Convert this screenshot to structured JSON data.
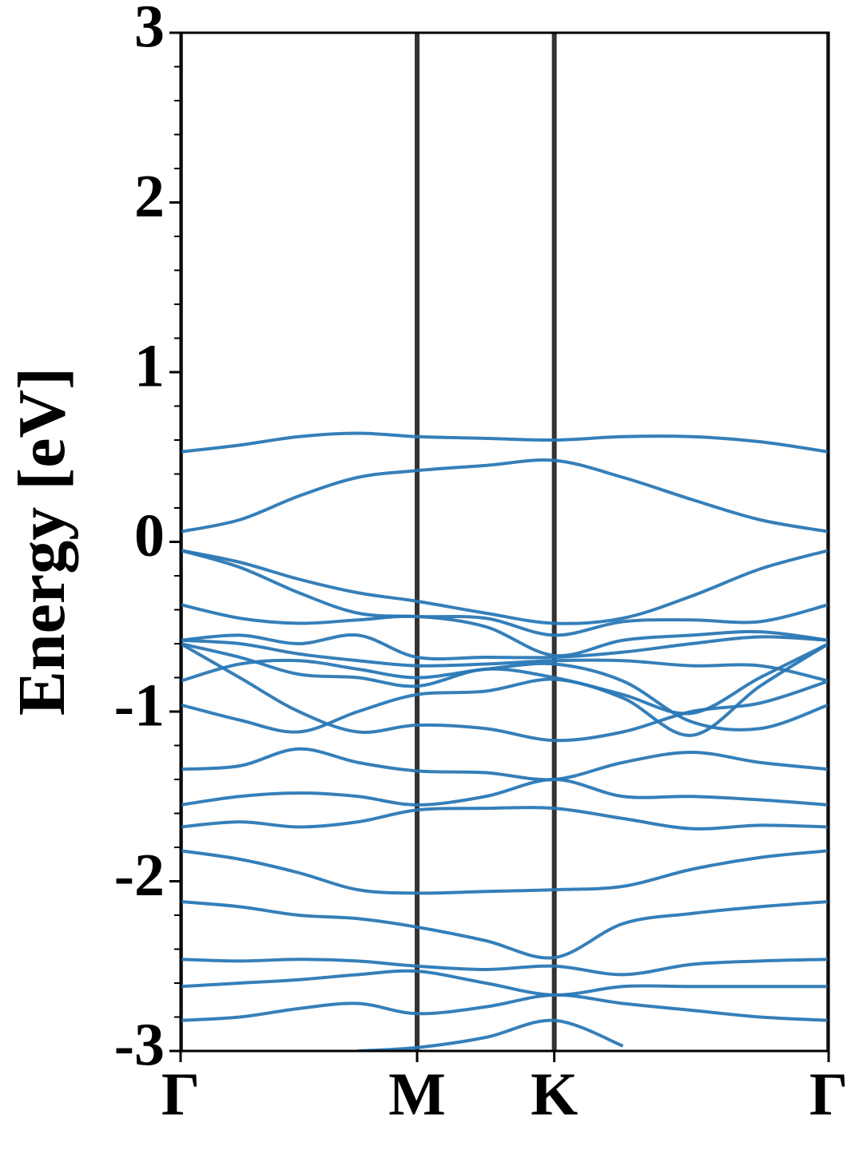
{
  "chart_data": {
    "type": "line",
    "ylabel": "Energy [eV]",
    "x": [
      0,
      0.25,
      0.5,
      0.75,
      1,
      1.29,
      1.58,
      1.87,
      2.16,
      2.45,
      2.74
    ],
    "xlim": [
      0,
      2.74
    ],
    "xticks": [
      {
        "value": 0,
        "label": "Γ"
      },
      {
        "value": 1,
        "label": "M"
      },
      {
        "value": 1.58,
        "label": "K"
      },
      {
        "value": 2.74,
        "label": "Γ"
      }
    ],
    "xgrid": true,
    "ylim": [
      -3,
      3
    ],
    "yticks": [
      -3,
      -2,
      -1,
      0,
      1,
      2,
      3
    ],
    "yminorticks": [
      -2.8,
      -2.6,
      -2.4,
      -2.2,
      -1.8,
      -1.6,
      -1.4,
      -1.2,
      -0.8,
      -0.6,
      -0.4,
      -0.2,
      0.2,
      0.4,
      0.6,
      0.8,
      1.2,
      1.4,
      1.6,
      1.8,
      2.2,
      2.4,
      2.6,
      2.8
    ],
    "color": "#2a78b5",
    "series": [
      {
        "values": [
          0.53,
          0.57,
          0.62,
          0.64,
          0.62,
          0.61,
          0.6,
          0.62,
          0.62,
          0.59,
          0.53
        ]
      },
      {
        "values": [
          0.06,
          0.13,
          0.27,
          0.38,
          0.42,
          0.45,
          0.48,
          0.38,
          0.25,
          0.13,
          0.06
        ]
      },
      {
        "values": [
          -0.05,
          -0.12,
          -0.22,
          -0.3,
          -0.35,
          -0.42,
          -0.48,
          -0.45,
          -0.32,
          -0.16,
          -0.05
        ]
      },
      {
        "values": [
          -0.05,
          -0.15,
          -0.3,
          -0.42,
          -0.44,
          -0.45,
          -0.55,
          -0.47,
          -0.46,
          -0.47,
          -0.37
        ]
      },
      {
        "values": [
          -0.37,
          -0.45,
          -0.48,
          -0.46,
          -0.44,
          -0.5,
          -0.67,
          -0.58,
          -0.55,
          -0.53,
          -0.58
        ]
      },
      {
        "values": [
          -0.58,
          -0.55,
          -0.6,
          -0.55,
          -0.68,
          -0.68,
          -0.68,
          -0.65,
          -0.6,
          -0.56,
          -0.58
        ]
      },
      {
        "values": [
          -0.58,
          -0.6,
          -0.66,
          -0.7,
          -0.73,
          -0.72,
          -0.7,
          -0.7,
          -0.73,
          -0.73,
          -0.82
        ]
      },
      {
        "values": [
          -0.6,
          -0.68,
          -0.78,
          -0.8,
          -0.85,
          -0.75,
          -0.8,
          -0.9,
          -1.01,
          -0.8,
          -0.6
        ]
      },
      {
        "values": [
          -0.82,
          -0.72,
          -0.7,
          -0.75,
          -0.8,
          -0.75,
          -0.72,
          -0.82,
          -1.06,
          -1.1,
          -0.96
        ]
      },
      {
        "values": [
          -0.96,
          -1.05,
          -1.12,
          -1.0,
          -0.9,
          -0.88,
          -0.81,
          -0.92,
          -1.14,
          -0.85,
          -0.6
        ]
      },
      {
        "values": [
          -0.6,
          -0.8,
          -1.0,
          -1.12,
          -1.08,
          -1.1,
          -1.17,
          -1.12,
          -1.0,
          -0.95,
          -0.82
        ]
      },
      {
        "values": [
          -1.34,
          -1.32,
          -1.22,
          -1.3,
          -1.35,
          -1.36,
          -1.4,
          -1.3,
          -1.24,
          -1.3,
          -1.34
        ]
      },
      {
        "values": [
          -1.55,
          -1.5,
          -1.48,
          -1.5,
          -1.55,
          -1.5,
          -1.4,
          -1.5,
          -1.5,
          -1.52,
          -1.55
        ]
      },
      {
        "values": [
          -1.68,
          -1.65,
          -1.68,
          -1.65,
          -1.58,
          -1.57,
          -1.57,
          -1.63,
          -1.69,
          -1.67,
          -1.68
        ]
      },
      {
        "values": [
          -1.82,
          -1.87,
          -1.95,
          -2.05,
          -2.07,
          -2.06,
          -2.05,
          -2.03,
          -1.93,
          -1.86,
          -1.82
        ]
      },
      {
        "values": [
          -2.12,
          -2.15,
          -2.2,
          -2.22,
          -2.27,
          -2.35,
          -2.45,
          -2.25,
          -2.19,
          -2.15,
          -2.12
        ]
      },
      {
        "values": [
          -2.46,
          -2.47,
          -2.46,
          -2.47,
          -2.5,
          -2.52,
          -2.5,
          -2.55,
          -2.49,
          -2.47,
          -2.46
        ]
      },
      {
        "values": [
          -2.62,
          -2.6,
          -2.58,
          -2.55,
          -2.53,
          -2.6,
          -2.67,
          -2.62,
          -2.62,
          -2.62,
          -2.62
        ]
      },
      {
        "values": [
          -2.82,
          -2.8,
          -2.75,
          -2.72,
          -2.78,
          -2.74,
          -2.67,
          -2.72,
          -2.76,
          -2.8,
          -2.82
        ]
      },
      {
        "values": [
          null,
          null,
          null,
          -3.0,
          -2.98,
          -2.92,
          -2.82,
          -2.97,
          null,
          null,
          null
        ]
      }
    ]
  }
}
